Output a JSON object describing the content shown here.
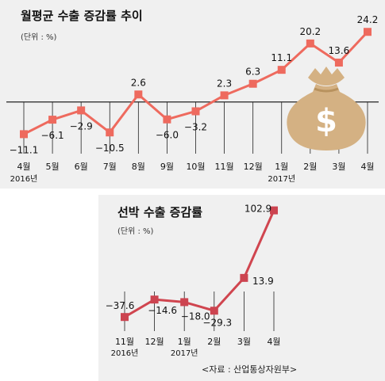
{
  "colors": {
    "background": "#f0f0f0",
    "line": "#ee6a5e",
    "marker": "#ee6a5e",
    "line2": "#d0454f",
    "marker2": "#cc4450",
    "moneybag": "#d4b183",
    "dollar": "#ffffff",
    "axis": "#222222",
    "text": "#111111"
  },
  "icon": "money-bag-icon",
  "icon_symbol": "$",
  "source_note": "<자료 : 산업통상자원부>",
  "chart_data": [
    {
      "type": "line",
      "title": "월평균 수출 증감률 추이",
      "unit_label": "(단위 : %)",
      "categories": [
        "4월",
        "5월",
        "6월",
        "7월",
        "8월",
        "9월",
        "10월",
        "11월",
        "12월",
        "1월",
        "2월",
        "3월",
        "4월"
      ],
      "year_labels": [
        {
          "text": "2016년",
          "index": 0
        },
        {
          "text": "2017년",
          "index": 9
        }
      ],
      "values": [
        -11.1,
        -6.1,
        -2.9,
        -10.5,
        2.6,
        -6.0,
        -3.2,
        2.3,
        6.3,
        11.1,
        20.2,
        13.6,
        24.2
      ],
      "value_labels": [
        "-11.1",
        "-6.1",
        "-2.9",
        "-10.5",
        "2.6",
        "-6.0",
        "-3.2",
        "2.3",
        "6.3",
        "11.1",
        "20.2",
        "13.6",
        "24.2"
      ],
      "ylim": [
        -14,
        27
      ],
      "baseline": 0,
      "grid": false
    },
    {
      "type": "line",
      "title": "선박 수출 증감률",
      "unit_label": "(단위 : %)",
      "categories": [
        "11월",
        "12월",
        "1월",
        "2월",
        "3월",
        "4월"
      ],
      "year_labels": [
        {
          "text": "2016년",
          "index": 0
        },
        {
          "text": "2017년",
          "index": 2
        }
      ],
      "values": [
        -37.6,
        -14.6,
        -18.0,
        -29.3,
        13.9,
        102.9
      ],
      "value_labels": [
        "-37.6",
        "-14.6",
        "-18.0",
        "-29.3",
        "13.9",
        "102.9"
      ],
      "ylim": [
        -52,
        115
      ],
      "baseline": null,
      "grid": false
    }
  ]
}
